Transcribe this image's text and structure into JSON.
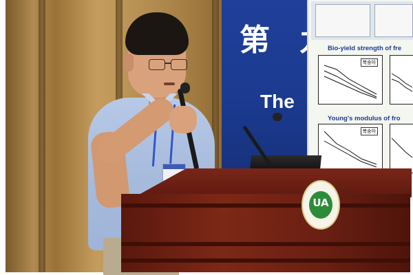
{
  "banner": {
    "chars": "第 九",
    "word": "The"
  },
  "slide": {
    "caption_1": "Bio-yield strength of fre",
    "caption_2": "Young's modulus of fro",
    "legend_1": "복숭아",
    "legend_2": "복숭아"
  },
  "emblem": {
    "letters": "UA"
  },
  "colors": {
    "banner_blue": "#1b3a8f",
    "slide_caption_blue": "#1d3b99",
    "podium_red": "#6a1f12",
    "shirt_blue": "#a7bbdd",
    "emblem_green": "#2e8b3a"
  }
}
